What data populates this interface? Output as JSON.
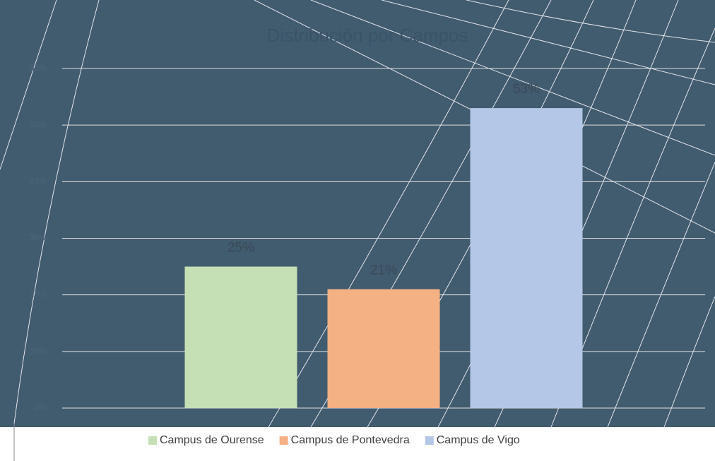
{
  "chart_data": {
    "type": "bar",
    "title": "Distribución por Campos",
    "series": [
      {
        "name": "Campus de Ourense",
        "color": "#c5e0b4",
        "values": [
          25
        ],
        "value_labels": [
          "25%"
        ]
      },
      {
        "name": "Campus de Pontevedra",
        "color": "#f4b183",
        "values": [
          21
        ],
        "value_labels": [
          "21%"
        ]
      },
      {
        "name": "Campus de Vigo",
        "color": "#b4c7e7",
        "values": [
          53
        ],
        "value_labels": [
          "53%"
        ]
      }
    ],
    "ylim": [
      0,
      60
    ],
    "yticks": [
      {
        "value": 0,
        "label": "0%"
      },
      {
        "value": 10,
        "label": "10%"
      },
      {
        "value": 20,
        "label": "20%"
      },
      {
        "value": 30,
        "label": "30%"
      },
      {
        "value": 40,
        "label": "40%"
      },
      {
        "value": 50,
        "label": "50%"
      },
      {
        "value": 60,
        "label": "60%"
      }
    ],
    "grid": true,
    "legend": "bottom"
  }
}
